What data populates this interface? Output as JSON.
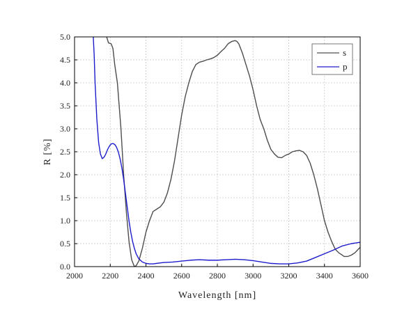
{
  "chart_data": {
    "type": "line",
    "title": "",
    "xlabel": "Wavelength [nm]",
    "ylabel": "R [%]",
    "xlim": [
      2000,
      3600
    ],
    "ylim": [
      0,
      5.0
    ],
    "xticks": [
      2000,
      2200,
      2400,
      2600,
      2800,
      3000,
      3200,
      3400,
      3600
    ],
    "xtick_labels": [
      "2000",
      "2200",
      "2400",
      "2600",
      "2800",
      "3000",
      "3200",
      "3400",
      "3600"
    ],
    "yticks": [
      0,
      0.5,
      1.0,
      1.5,
      2.0,
      2.5,
      3.0,
      3.5,
      4.0,
      4.5,
      5.0
    ],
    "ytick_labels": [
      "0.0",
      "0.5",
      "1.0",
      "1.5",
      "2.0",
      "2.5",
      "3.0",
      "3.5",
      "4.0",
      "4.5",
      "5.0"
    ],
    "grid": true,
    "legend_position": "top-right",
    "series": [
      {
        "name": "s",
        "color": "#4d4d4d",
        "x": [
          2180,
          2190,
          2205,
          2215,
          2225,
          2240,
          2260,
          2275,
          2290,
          2305,
          2320,
          2335,
          2345,
          2360,
          2380,
          2400,
          2420,
          2440,
          2460,
          2480,
          2500,
          2520,
          2540,
          2560,
          2580,
          2600,
          2620,
          2640,
          2660,
          2680,
          2700,
          2720,
          2740,
          2760,
          2780,
          2800,
          2820,
          2840,
          2860,
          2880,
          2900,
          2910,
          2920,
          2940,
          2960,
          2980,
          3000,
          3020,
          3040,
          3060,
          3080,
          3100,
          3120,
          3140,
          3160,
          3180,
          3200,
          3220,
          3240,
          3260,
          3280,
          3300,
          3320,
          3340,
          3360,
          3380,
          3400,
          3420,
          3440,
          3460,
          3480,
          3500,
          3510,
          3530,
          3550,
          3570,
          3590,
          3600
        ],
        "y": [
          5.0,
          4.87,
          4.85,
          4.75,
          4.4,
          4.0,
          3.0,
          2.0,
          1.2,
          0.55,
          0.15,
          0.0,
          0.02,
          0.12,
          0.4,
          0.75,
          1.0,
          1.2,
          1.25,
          1.3,
          1.4,
          1.6,
          1.9,
          2.3,
          2.8,
          3.3,
          3.7,
          4.0,
          4.25,
          4.4,
          4.45,
          4.47,
          4.5,
          4.52,
          4.55,
          4.6,
          4.68,
          4.75,
          4.85,
          4.9,
          4.92,
          4.9,
          4.85,
          4.65,
          4.4,
          4.15,
          3.85,
          3.5,
          3.2,
          3.0,
          2.75,
          2.55,
          2.45,
          2.38,
          2.37,
          2.42,
          2.45,
          2.5,
          2.52,
          2.53,
          2.5,
          2.42,
          2.25,
          2.0,
          1.7,
          1.35,
          1.0,
          0.75,
          0.55,
          0.38,
          0.3,
          0.25,
          0.22,
          0.22,
          0.25,
          0.3,
          0.38,
          0.42
        ]
      },
      {
        "name": "p",
        "color": "#1c1ccc",
        "x": [
          2105,
          2110,
          2115,
          2125,
          2135,
          2145,
          2155,
          2165,
          2175,
          2185,
          2195,
          2205,
          2215,
          2225,
          2235,
          2245,
          2255,
          2265,
          2275,
          2285,
          2295,
          2305,
          2315,
          2325,
          2335,
          2345,
          2360,
          2380,
          2400,
          2420,
          2440,
          2460,
          2480,
          2500,
          2550,
          2600,
          2650,
          2700,
          2750,
          2800,
          2850,
          2900,
          2950,
          3000,
          3050,
          3100,
          3150,
          3200,
          3250,
          3300,
          3350,
          3400,
          3450,
          3500,
          3550,
          3600
        ],
        "y": [
          5.0,
          4.6,
          4.0,
          3.2,
          2.7,
          2.45,
          2.35,
          2.38,
          2.45,
          2.55,
          2.62,
          2.67,
          2.68,
          2.66,
          2.6,
          2.5,
          2.35,
          2.15,
          1.9,
          1.6,
          1.3,
          1.0,
          0.75,
          0.55,
          0.4,
          0.28,
          0.17,
          0.1,
          0.07,
          0.06,
          0.06,
          0.07,
          0.08,
          0.09,
          0.1,
          0.12,
          0.14,
          0.15,
          0.14,
          0.14,
          0.15,
          0.16,
          0.15,
          0.13,
          0.1,
          0.07,
          0.06,
          0.06,
          0.08,
          0.12,
          0.2,
          0.28,
          0.36,
          0.45,
          0.5,
          0.53
        ]
      }
    ]
  }
}
